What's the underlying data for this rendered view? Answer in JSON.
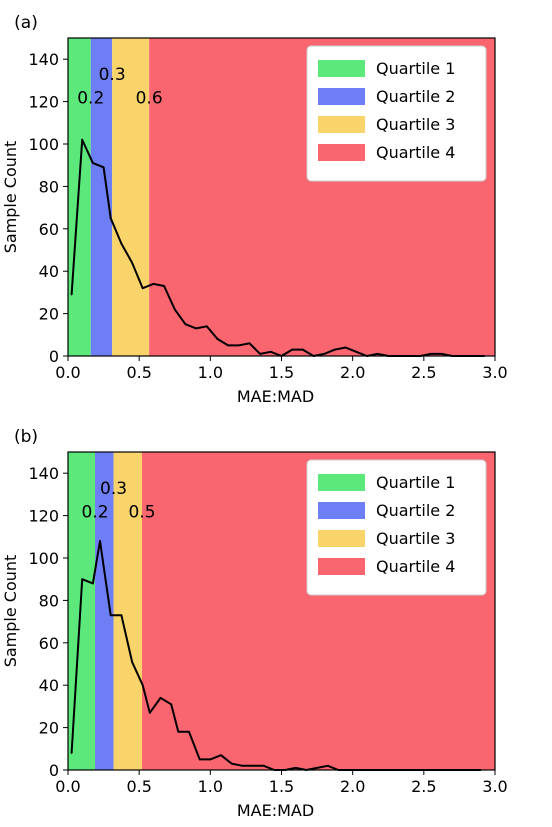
{
  "chart_data": [
    {
      "panel_label": "(a)",
      "type": "line",
      "xlabel": "MAE:MAD",
      "ylabel": "Sample Count",
      "xlim": [
        0.0,
        3.0
      ],
      "ylim": [
        0,
        150
      ],
      "xticks": [
        "0.0",
        "0.5",
        "1.0",
        "1.5",
        "2.0",
        "2.5",
        "3.0"
      ],
      "yticks": [
        "0",
        "20",
        "40",
        "60",
        "80",
        "100",
        "120",
        "140"
      ],
      "grid": false,
      "legend_position": "top-right",
      "regions": [
        {
          "name": "Quartile 1",
          "x_start": 0.0,
          "x_end": 0.16,
          "color": "#5ce87a"
        },
        {
          "name": "Quartile 2",
          "x_start": 0.16,
          "x_end": 0.31,
          "color": "#6e7ef5"
        },
        {
          "name": "Quartile 3",
          "x_start": 0.31,
          "x_end": 0.57,
          "color": "#f8d46a"
        },
        {
          "name": "Quartile 4",
          "x_start": 0.57,
          "x_end": 3.0,
          "color": "#fa6670"
        }
      ],
      "boundary_labels": [
        {
          "text": "0.2",
          "x": 0.16,
          "y": 122
        },
        {
          "text": "0.3",
          "x": 0.31,
          "y": 133
        },
        {
          "text": "0.6",
          "x": 0.57,
          "y": 122
        }
      ],
      "series": [
        {
          "color": "#000000",
          "x": [
            0.025,
            0.1,
            0.175,
            0.25,
            0.3,
            0.375,
            0.45,
            0.525,
            0.6,
            0.675,
            0.75,
            0.825,
            0.9,
            0.975,
            1.05,
            1.125,
            1.2,
            1.275,
            1.35,
            1.425,
            1.5,
            1.575,
            1.65,
            1.725,
            1.8,
            1.875,
            1.95,
            2.025,
            2.1,
            2.175,
            2.25,
            2.325,
            2.4,
            2.475,
            2.55,
            2.625,
            2.7,
            2.775,
            2.85,
            2.925
          ],
          "values": [
            29,
            102,
            91,
            89,
            65,
            53,
            44,
            32,
            34,
            33,
            22,
            15,
            13,
            14,
            8,
            5,
            5,
            6,
            1,
            2,
            0,
            3,
            3,
            0,
            1,
            3,
            4,
            2,
            0,
            1,
            0,
            0,
            0,
            0,
            1,
            1,
            0,
            0,
            0,
            0
          ]
        }
      ]
    },
    {
      "panel_label": "(b)",
      "type": "line",
      "xlabel": "MAE:MAD",
      "ylabel": "Sample Count",
      "xlim": [
        0.0,
        3.0
      ],
      "ylim": [
        0,
        150
      ],
      "xticks": [
        "0.0",
        "0.5",
        "1.0",
        "1.5",
        "2.0",
        "2.5",
        "3.0"
      ],
      "yticks": [
        "0",
        "20",
        "40",
        "60",
        "80",
        "100",
        "120",
        "140"
      ],
      "grid": false,
      "legend_position": "top-right",
      "regions": [
        {
          "name": "Quartile 1",
          "x_start": 0.0,
          "x_end": 0.19,
          "color": "#5ce87a"
        },
        {
          "name": "Quartile 2",
          "x_start": 0.19,
          "x_end": 0.32,
          "color": "#6e7ef5"
        },
        {
          "name": "Quartile 3",
          "x_start": 0.32,
          "x_end": 0.52,
          "color": "#f8d46a"
        },
        {
          "name": "Quartile 4",
          "x_start": 0.52,
          "x_end": 3.0,
          "color": "#fa6670"
        }
      ],
      "boundary_labels": [
        {
          "text": "0.2",
          "x": 0.19,
          "y": 122
        },
        {
          "text": "0.3",
          "x": 0.32,
          "y": 133
        },
        {
          "text": "0.5",
          "x": 0.52,
          "y": 122
        }
      ],
      "series": [
        {
          "color": "#000000",
          "x": [
            0.025,
            0.1,
            0.175,
            0.225,
            0.3,
            0.375,
            0.45,
            0.525,
            0.575,
            0.65,
            0.725,
            0.775,
            0.85,
            0.925,
            1.0,
            1.075,
            1.15,
            1.225,
            1.3,
            1.375,
            1.45,
            1.525,
            1.6,
            1.675,
            1.75,
            1.825,
            1.9,
            2.0,
            2.1,
            2.2,
            2.3,
            2.4,
            2.5,
            2.6,
            2.7,
            2.8,
            2.9
          ],
          "values": [
            8,
            90,
            88,
            108,
            73,
            73,
            51,
            40,
            27,
            34,
            31,
            18,
            18,
            5,
            5,
            7,
            3,
            2,
            2,
            2,
            0,
            0,
            1,
            0,
            1,
            2,
            0,
            0,
            0,
            0,
            0,
            0,
            0,
            0,
            0,
            0,
            0
          ]
        }
      ]
    }
  ]
}
